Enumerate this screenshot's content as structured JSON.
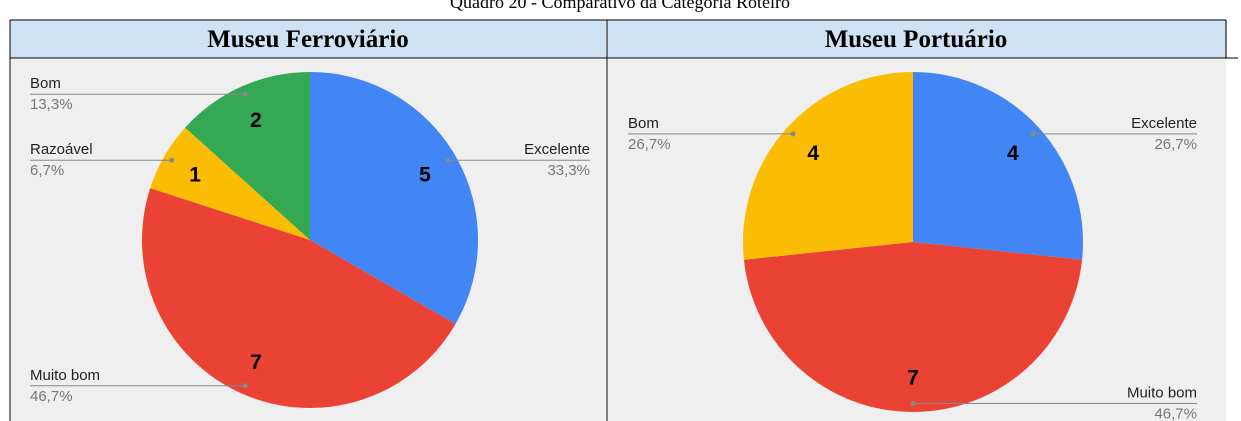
{
  "caption": "Quadro 20 - Comparativo da Categoria Roteiro",
  "chart_data": [
    {
      "type": "pie",
      "title": "Museu Ferroviário",
      "categories": [
        "Excelente",
        "Muito bom",
        "Razoável",
        "Bom"
      ],
      "values": [
        5,
        7,
        1,
        2
      ],
      "percent_labels": [
        "33,3%",
        "46,7%",
        "6,7%",
        "13,3%"
      ],
      "colors": [
        "#4285f4",
        "#ea4335",
        "#fbbc04",
        "#34a853"
      ]
    },
    {
      "type": "pie",
      "title": "Museu Portuário",
      "categories": [
        "Excelente",
        "Muito bom",
        "Bom"
      ],
      "values": [
        4,
        7,
        4
      ],
      "percent_labels": [
        "26,7%",
        "46,7%",
        "26,7%"
      ],
      "colors": [
        "#4285f4",
        "#ea4335",
        "#fbbc04"
      ]
    }
  ]
}
